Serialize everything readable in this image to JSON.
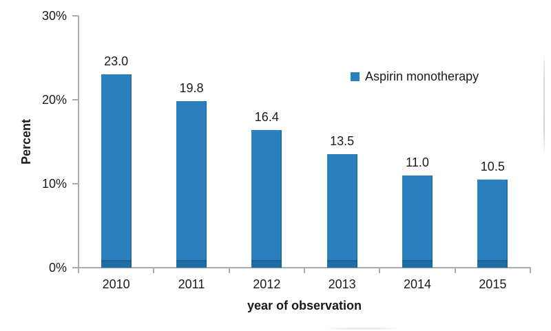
{
  "chart_data": {
    "type": "bar",
    "title": "",
    "categories": [
      "2010",
      "2011",
      "2012",
      "2013",
      "2014",
      "2015"
    ],
    "series": [
      {
        "name": "Aspirin monotherapy",
        "values": [
          23.0,
          19.8,
          16.4,
          13.5,
          11.0,
          10.5
        ]
      }
    ],
    "value_labels": [
      "23.0",
      "19.8",
      "16.4",
      "13.5",
      "11.0",
      "10.5"
    ],
    "xlabel": "year of observation",
    "ylabel": "Percent",
    "ylim": [
      0,
      30
    ],
    "yticks": [
      {
        "value": 0,
        "label": "0%"
      },
      {
        "value": 10,
        "label": "10%"
      },
      {
        "value": 20,
        "label": "20%"
      },
      {
        "value": 30,
        "label": "30%"
      }
    ],
    "grid": false,
    "legend": {
      "position": "inside-top-right",
      "entries": [
        "Aspirin monotherapy"
      ]
    },
    "colors": {
      "bar": "#2A7FBD",
      "bar_base_band": "#1F6EA6",
      "bar_base_line": "#1A6096",
      "axis": "#ABABAB",
      "text": "#1A1A1A"
    }
  }
}
